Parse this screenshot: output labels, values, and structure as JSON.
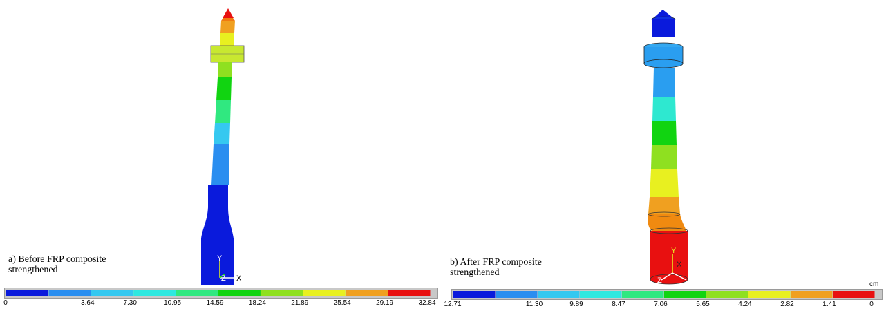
{
  "panel_a": {
    "caption_line1": "a) Before FRP composite",
    "caption_line2": "strengthened",
    "triad": {
      "y": "Y",
      "z": "Z",
      "x": "X"
    },
    "legend": {
      "colors": [
        "#0a1adc",
        "#2a8ef0",
        "#35c8f0",
        "#2ee8e0",
        "#30e880",
        "#11d411",
        "#8fe020",
        "#e8f020",
        "#f0a020",
        "#e81010"
      ],
      "ticks": [
        "0",
        "3.64",
        "7.30",
        "10.95",
        "14.59",
        "18.24",
        "21.89",
        "25.54",
        "29.19",
        "32.84"
      ]
    }
  },
  "panel_b": {
    "caption_line1": "b) After FRP composite",
    "caption_line2": "strengthened",
    "triad": {
      "y": "Y",
      "z": "Z",
      "x": "X"
    },
    "unit": "cm",
    "legend": {
      "colors": [
        "#0a1adc",
        "#2a8ef0",
        "#35c8f0",
        "#2ee8e0",
        "#30e880",
        "#11d411",
        "#8fe020",
        "#e8f020",
        "#f0a020",
        "#e81010"
      ],
      "ticks": [
        "12.71",
        "11.30",
        "9.89",
        "8.47",
        "7.06",
        "5.65",
        "4.24",
        "2.82",
        "1.41",
        "0"
      ]
    }
  }
}
